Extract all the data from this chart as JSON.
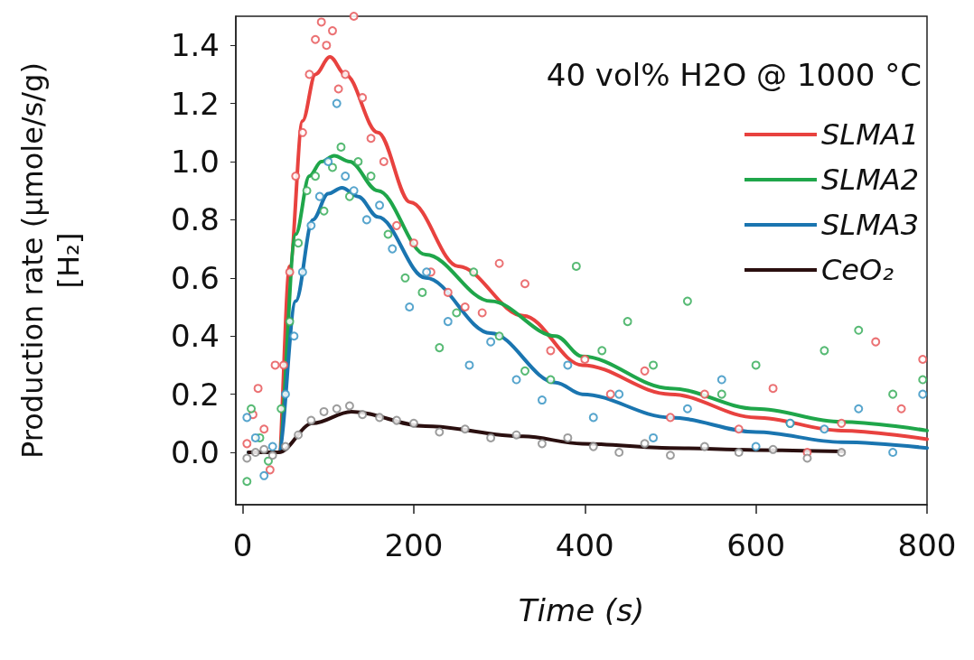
{
  "chart_data": {
    "type": "line",
    "xlabel": "Time (s)",
    "ylabel": "Production rate (µmole/s/g)\n[H₂]",
    "annotations": [
      "40 vol% H2O @ 1000 °C"
    ],
    "xlim": [
      -8,
      800
    ],
    "xticks": [
      0,
      200,
      400,
      600,
      800
    ],
    "ylim": [
      -0.18,
      1.5
    ],
    "yticks": [
      {
        "value": 0,
        "label": "0.0"
      },
      0.2,
      0.4,
      0.6,
      0.8,
      {
        "value": 1,
        "label": "1.0"
      },
      1.2,
      1.4
    ],
    "grid": false,
    "legend": "top right",
    "series": [
      {
        "type": "scatter",
        "marker": "circle",
        "color": "#e8585a",
        "x": [
          5,
          12,
          18,
          25,
          32,
          38,
          48,
          55,
          62,
          70,
          78,
          85,
          92,
          98,
          105,
          112,
          120,
          130,
          140,
          150,
          165,
          180,
          200,
          220,
          240,
          260,
          280,
          300,
          330,
          360,
          400,
          430,
          470,
          500,
          540,
          580,
          620,
          660,
          700,
          740,
          770,
          795
        ],
        "values": [
          0.03,
          0.13,
          0.22,
          0.08,
          -0.06,
          0.3,
          0.3,
          0.62,
          0.95,
          1.1,
          1.3,
          1.42,
          1.48,
          1.4,
          1.45,
          1.25,
          1.3,
          1.5,
          1.22,
          1.08,
          1.0,
          0.78,
          0.72,
          0.62,
          0.55,
          0.5,
          0.48,
          0.65,
          0.58,
          0.35,
          0.32,
          0.2,
          0.28,
          0.12,
          0.2,
          0.08,
          0.22,
          0.0,
          0.1,
          0.38,
          0.15,
          0.32
        ]
      },
      {
        "type": "scatter",
        "marker": "circle",
        "color": "#3aae5c",
        "x": [
          5,
          10,
          20,
          30,
          45,
          55,
          65,
          75,
          85,
          95,
          105,
          115,
          125,
          135,
          150,
          170,
          190,
          210,
          230,
          250,
          270,
          300,
          330,
          360,
          390,
          420,
          450,
          480,
          520,
          560,
          600,
          640,
          680,
          720,
          760,
          795
        ],
        "values": [
          -0.1,
          0.15,
          0.05,
          -0.03,
          0.15,
          0.45,
          0.72,
          0.9,
          0.95,
          0.83,
          0.98,
          1.05,
          0.88,
          1.0,
          0.95,
          0.75,
          0.6,
          0.55,
          0.36,
          0.48,
          0.62,
          0.4,
          0.28,
          0.25,
          0.64,
          0.35,
          0.45,
          0.3,
          0.52,
          0.2,
          0.3,
          0.1,
          0.35,
          0.42,
          0.2,
          0.25
        ]
      },
      {
        "type": "scatter",
        "marker": "circle",
        "color": "#3a95c4",
        "x": [
          5,
          15,
          25,
          35,
          50,
          60,
          70,
          80,
          90,
          100,
          110,
          120,
          130,
          145,
          160,
          175,
          195,
          215,
          240,
          265,
          290,
          320,
          350,
          380,
          410,
          440,
          480,
          520,
          560,
          600,
          640,
          680,
          720,
          760,
          795
        ],
        "values": [
          0.12,
          0.05,
          -0.08,
          0.02,
          0.2,
          0.4,
          0.62,
          0.78,
          0.88,
          1.0,
          1.2,
          0.95,
          0.9,
          0.8,
          0.85,
          0.7,
          0.5,
          0.62,
          0.45,
          0.3,
          0.38,
          0.25,
          0.18,
          0.3,
          0.12,
          0.2,
          0.05,
          0.15,
          0.25,
          0.02,
          0.1,
          0.08,
          0.15,
          0.0,
          0.2
        ]
      },
      {
        "type": "scatter",
        "marker": "circle",
        "color": "#8c8c8c",
        "x": [
          5,
          15,
          25,
          35,
          50,
          65,
          80,
          95,
          110,
          125,
          140,
          160,
          180,
          200,
          230,
          260,
          290,
          320,
          350,
          380,
          410,
          440,
          470,
          500,
          540,
          580,
          620,
          660,
          700
        ],
        "values": [
          -0.02,
          0.0,
          0.01,
          -0.01,
          0.02,
          0.06,
          0.11,
          0.14,
          0.15,
          0.16,
          0.13,
          0.12,
          0.11,
          0.1,
          0.07,
          0.08,
          0.05,
          0.06,
          0.03,
          0.05,
          0.02,
          0.0,
          0.03,
          -0.01,
          0.02,
          0.0,
          0.01,
          -0.02,
          0.0
        ]
      },
      {
        "name": "SLMA1",
        "marker": "none",
        "color": "#e8423f",
        "x": [
          7,
          42,
          55,
          70,
          85,
          102,
          120,
          158,
          196,
          252,
          328,
          397,
          500,
          600,
          700,
          800
        ],
        "values": [
          0,
          0,
          0.64,
          1.14,
          1.3,
          1.36,
          1.3,
          1.1,
          0.86,
          0.64,
          0.47,
          0.3,
          0.2,
          0.12,
          0.075,
          0.045
        ]
      },
      {
        "name": "SLMA2",
        "marker": "none",
        "color": "#1fa64a",
        "x": [
          7,
          42,
          62,
          78,
          92,
          107,
          125,
          158,
          214,
          290,
          366,
          397,
          500,
          600,
          700,
          800
        ],
        "values": [
          0,
          0,
          0.75,
          0.95,
          1.0,
          1.02,
          1.0,
          0.9,
          0.68,
          0.52,
          0.4,
          0.33,
          0.22,
          0.15,
          0.105,
          0.075
        ]
      },
      {
        "name": "SLMA3",
        "marker": "none",
        "color": "#1a75b0",
        "x": [
          7,
          42,
          62,
          82,
          100,
          116,
          135,
          158,
          214,
          290,
          366,
          397,
          500,
          600,
          700,
          800
        ],
        "values": [
          0,
          0,
          0.52,
          0.8,
          0.89,
          0.91,
          0.88,
          0.81,
          0.6,
          0.41,
          0.24,
          0.2,
          0.12,
          0.07,
          0.035,
          0.015
        ]
      },
      {
        "name": "CeO₂",
        "marker": "none",
        "color": "#2a0f0f",
        "x": [
          7,
          42,
          82,
          127,
          214,
          328,
          397,
          500,
          600,
          702
        ],
        "values": [
          0,
          0,
          0.1,
          0.14,
          0.09,
          0.055,
          0.03,
          0.015,
          0.008,
          0.003
        ]
      }
    ]
  }
}
